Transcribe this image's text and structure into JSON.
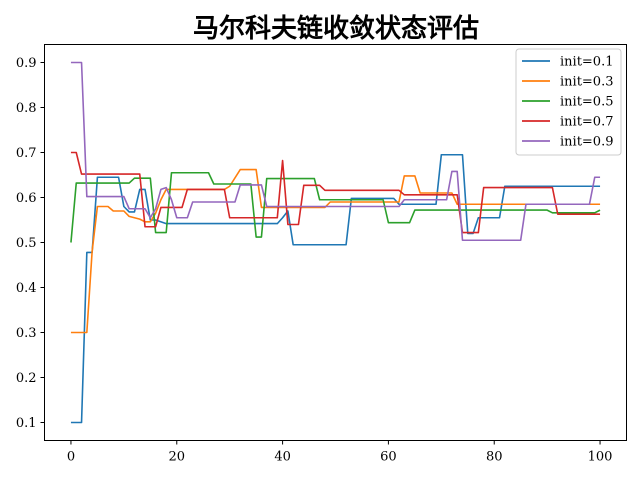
{
  "chart_data": {
    "type": "line",
    "title": "马尔科夫链收敛状态评估",
    "xlabel": "",
    "ylabel": "",
    "xlim": [
      -5,
      105
    ],
    "ylim": [
      0.06,
      0.94
    ],
    "xticks": [
      0,
      20,
      40,
      60,
      80,
      100
    ],
    "yticks": [
      0.1,
      0.2,
      0.3,
      0.4,
      0.5,
      0.6,
      0.7,
      0.8,
      0.9
    ],
    "grid": false,
    "legend_position": "top-right",
    "series": [
      {
        "name": "init=0.1",
        "color": "#1f77b4",
        "points": [
          [
            0,
            0.1
          ],
          [
            2,
            0.1
          ],
          [
            3,
            0.478
          ],
          [
            4,
            0.478
          ],
          [
            5,
            0.645
          ],
          [
            9,
            0.645
          ],
          [
            10,
            0.58
          ],
          [
            11,
            0.568
          ],
          [
            12,
            0.568
          ],
          [
            13,
            0.618
          ],
          [
            14,
            0.618
          ],
          [
            15,
            0.55
          ],
          [
            16,
            0.55
          ],
          [
            18,
            0.542
          ],
          [
            39,
            0.542
          ],
          [
            40,
            0.555
          ],
          [
            41,
            0.57
          ],
          [
            42,
            0.495
          ],
          [
            52,
            0.495
          ],
          [
            53,
            0.598
          ],
          [
            61,
            0.598
          ],
          [
            62,
            0.585
          ],
          [
            69,
            0.585
          ],
          [
            70,
            0.695
          ],
          [
            74,
            0.695
          ],
          [
            75,
            0.52
          ],
          [
            76,
            0.52
          ],
          [
            77,
            0.555
          ],
          [
            81,
            0.555
          ],
          [
            82,
            0.625
          ],
          [
            100,
            0.625
          ]
        ]
      },
      {
        "name": "init=0.3",
        "color": "#ff7f0e",
        "points": [
          [
            0,
            0.3
          ],
          [
            3,
            0.3
          ],
          [
            4,
            0.48
          ],
          [
            5,
            0.58
          ],
          [
            7,
            0.58
          ],
          [
            8,
            0.57
          ],
          [
            10,
            0.57
          ],
          [
            11,
            0.558
          ],
          [
            13,
            0.552
          ],
          [
            14,
            0.546
          ],
          [
            15,
            0.546
          ],
          [
            16,
            0.565
          ],
          [
            17,
            0.595
          ],
          [
            18,
            0.618
          ],
          [
            19,
            0.618
          ],
          [
            29,
            0.618
          ],
          [
            30,
            0.625
          ],
          [
            32,
            0.662
          ],
          [
            35,
            0.662
          ],
          [
            36,
            0.578
          ],
          [
            48,
            0.578
          ],
          [
            49,
            0.59
          ],
          [
            62,
            0.59
          ],
          [
            63,
            0.648
          ],
          [
            65,
            0.648
          ],
          [
            66,
            0.61
          ],
          [
            72,
            0.61
          ],
          [
            73,
            0.585
          ],
          [
            100,
            0.585
          ]
        ]
      },
      {
        "name": "init=0.5",
        "color": "#2ca02c",
        "points": [
          [
            0,
            0.5
          ],
          [
            1,
            0.632
          ],
          [
            11,
            0.632
          ],
          [
            12,
            0.643
          ],
          [
            15,
            0.643
          ],
          [
            16,
            0.522
          ],
          [
            18,
            0.522
          ],
          [
            19,
            0.655
          ],
          [
            26,
            0.655
          ],
          [
            27,
            0.63
          ],
          [
            33,
            0.63
          ],
          [
            34,
            0.63
          ],
          [
            35,
            0.512
          ],
          [
            36,
            0.512
          ],
          [
            37,
            0.642
          ],
          [
            46,
            0.642
          ],
          [
            47,
            0.595
          ],
          [
            59,
            0.595
          ],
          [
            60,
            0.544
          ],
          [
            64,
            0.544
          ],
          [
            65,
            0.572
          ],
          [
            90,
            0.572
          ],
          [
            91,
            0.566
          ],
          [
            99,
            0.566
          ],
          [
            100,
            0.572
          ]
        ]
      },
      {
        "name": "init=0.7",
        "color": "#d62728",
        "points": [
          [
            0,
            0.7
          ],
          [
            1,
            0.7
          ],
          [
            2,
            0.652
          ],
          [
            13,
            0.652
          ],
          [
            14,
            0.535
          ],
          [
            16,
            0.535
          ],
          [
            17,
            0.578
          ],
          [
            21,
            0.578
          ],
          [
            22,
            0.618
          ],
          [
            29,
            0.618
          ],
          [
            30,
            0.555
          ],
          [
            39,
            0.555
          ],
          [
            40,
            0.682
          ],
          [
            41,
            0.54
          ],
          [
            43,
            0.54
          ],
          [
            44,
            0.627
          ],
          [
            47,
            0.627
          ],
          [
            48,
            0.616
          ],
          [
            62,
            0.616
          ],
          [
            63,
            0.606
          ],
          [
            73,
            0.606
          ],
          [
            74,
            0.522
          ],
          [
            77,
            0.522
          ],
          [
            78,
            0.622
          ],
          [
            91,
            0.622
          ],
          [
            92,
            0.563
          ],
          [
            100,
            0.563
          ]
        ]
      },
      {
        "name": "init=0.9",
        "color": "#9467bd",
        "points": [
          [
            0,
            0.9
          ],
          [
            2,
            0.9
          ],
          [
            3,
            0.602
          ],
          [
            10,
            0.602
          ],
          [
            11,
            0.575
          ],
          [
            14,
            0.575
          ],
          [
            15,
            0.555
          ],
          [
            16,
            0.575
          ],
          [
            17,
            0.618
          ],
          [
            18,
            0.622
          ],
          [
            19,
            0.595
          ],
          [
            20,
            0.555
          ],
          [
            22,
            0.555
          ],
          [
            23,
            0.59
          ],
          [
            31,
            0.59
          ],
          [
            32,
            0.628
          ],
          [
            36,
            0.628
          ],
          [
            37,
            0.58
          ],
          [
            62,
            0.58
          ],
          [
            63,
            0.595
          ],
          [
            71,
            0.595
          ],
          [
            72,
            0.658
          ],
          [
            73,
            0.658
          ],
          [
            74,
            0.505
          ],
          [
            85,
            0.505
          ],
          [
            86,
            0.585
          ],
          [
            98,
            0.585
          ],
          [
            99,
            0.645
          ],
          [
            100,
            0.645
          ]
        ]
      }
    ]
  }
}
